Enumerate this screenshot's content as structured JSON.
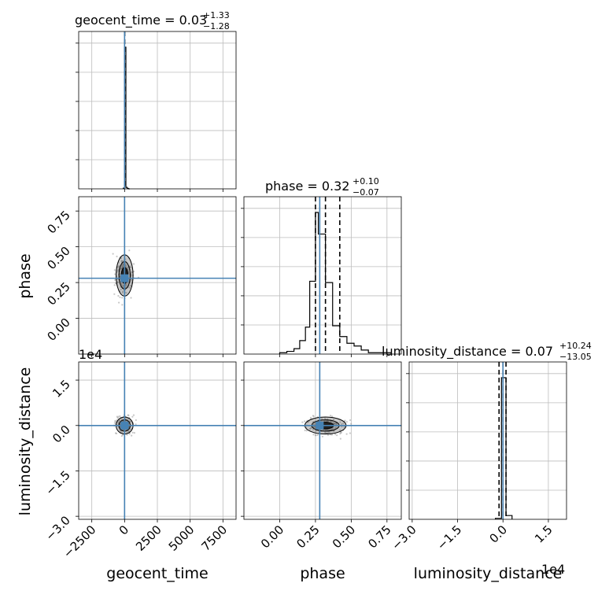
{
  "chart_data": {
    "type": "corner",
    "parameters": [
      "geocent_time",
      "phase",
      "luminosity_distance"
    ],
    "truth_color": "#4682b4",
    "hist_color": "#000000",
    "grid": true,
    "titles": {
      "geocent_time": {
        "prefix": "geocent_time = 0.03",
        "plus": "+1.33",
        "minus": "−1.28"
      },
      "phase": {
        "prefix": "phase = 0.32",
        "plus": "+0.10",
        "minus": "−0.07"
      },
      "luminosity_distance": {
        "prefix": "luminosity_distance = 0.07",
        "plus": "+10.24",
        "minus": "−13.05"
      }
    },
    "axes": {
      "geocent_time": {
        "label": "geocent_time",
        "range": [
          -3500,
          8500
        ],
        "ticks": [
          -2500,
          0,
          2500,
          5000,
          7500
        ],
        "tick_labels": [
          "−2500",
          "0",
          "2500",
          "5000",
          "7500"
        ],
        "truth": 0,
        "quantiles": [
          -1.25,
          0.03,
          1.36
        ]
      },
      "phase": {
        "label": "phase",
        "range": [
          -0.25,
          0.85
        ],
        "ticks": [
          0.0,
          0.25,
          0.5,
          0.75
        ],
        "tick_labels": [
          "0.00",
          "0.25",
          "0.50",
          "0.75"
        ],
        "truth": 0.28,
        "quantiles": [
          0.25,
          0.32,
          0.42
        ]
      },
      "luminosity_distance": {
        "label": "luminosity_distance",
        "range": [
          -3.1,
          2.1
        ],
        "ticks": [
          -3.0,
          -1.5,
          0.0,
          1.5
        ],
        "tick_labels": [
          "−3.0",
          "−1.5",
          "0.0",
          "1.5"
        ],
        "offset_text": "1e4",
        "truth": 0.0,
        "quantiles": [
          -0.13,
          0.0,
          0.1
        ]
      }
    },
    "diag_hists": {
      "geocent_time": {
        "edges": [
          -100,
          0,
          100,
          200,
          300,
          400
        ],
        "counts": [
          2,
          380,
          4,
          1,
          0
        ]
      },
      "phase": {
        "edges": [
          0.0,
          0.05,
          0.1,
          0.14,
          0.18,
          0.21,
          0.25,
          0.27,
          0.32,
          0.37,
          0.42,
          0.47,
          0.52,
          0.57,
          0.62,
          0.67,
          0.72,
          0.78
        ],
        "counts": [
          1,
          2,
          4,
          10,
          20,
          54,
          105,
          89,
          53,
          21,
          13,
          8,
          6,
          3,
          1,
          1,
          1
        ]
      },
      "luminosity_distance": {
        "edges": [
          -0.25,
          -0.05,
          0.1,
          0.3
        ],
        "counts": [
          2,
          300,
          8
        ]
      }
    },
    "panels": [
      {
        "row": "phase",
        "col": "geocent_time",
        "center": [
          0,
          0.3
        ],
        "spread": [
          60,
          0.08
        ]
      },
      {
        "row": "luminosity_distance",
        "col": "geocent_time",
        "center": [
          0,
          0.0
        ],
        "spread": [
          60,
          0.05
        ]
      },
      {
        "row": "luminosity_distance",
        "col": "phase",
        "center": [
          0.32,
          0.0
        ],
        "spread": [
          0.08,
          0.06
        ]
      }
    ]
  }
}
